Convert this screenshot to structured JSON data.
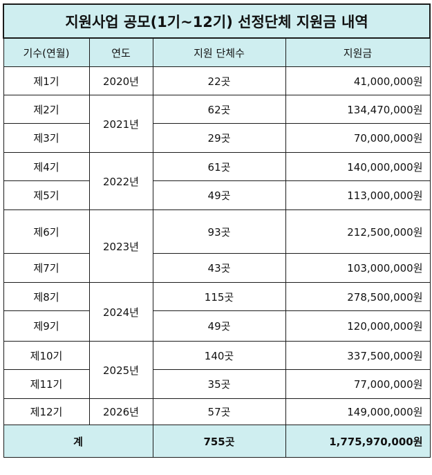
{
  "title": "지원사업 공모(1기~12기) 선정단체 지원금 내역",
  "headers": [
    "기수(연월)",
    "연도",
    "지원 단체수",
    "지원금"
  ],
  "rows": [
    {
      "term": "제1기",
      "year": "2020년",
      "count": "22곳",
      "amount": "41,000,000원"
    },
    {
      "term": "제2기",
      "year": "2021년",
      "count": "62곳",
      "amount": "134,470,000원"
    },
    {
      "term": "제3기",
      "year": "",
      "count": "29곳",
      "amount": "70,000,000원"
    },
    {
      "term": "제4기",
      "year": "2022년",
      "count": "61곳",
      "amount": "140,000,000원"
    },
    {
      "term": "제5기",
      "year": "",
      "count": "49곳",
      "amount": "113,000,000원"
    },
    {
      "term": "제6기",
      "year": "2023년",
      "count": "93곳",
      "amount": "212,500,000원"
    },
    {
      "term": "제7기",
      "year": "",
      "count": "43곳",
      "amount": "103,000,000원"
    },
    {
      "term": "제8기",
      "year": "2024년",
      "count": "115곳",
      "amount": "278,500,000원"
    },
    {
      "term": "제9기",
      "year": "",
      "count": "49곳",
      "amount": "120,000,000원"
    },
    {
      "term": "제10기",
      "year": "2025년",
      "count": "140곳",
      "amount": "337,500,000원"
    },
    {
      "term": "제11기",
      "year": "",
      "count": "35곳",
      "amount": "77,000,000원"
    },
    {
      "term": "제12기",
      "year": "2026년",
      "count": "57곳",
      "amount": "149,000,000원"
    }
  ],
  "total": {
    "label": "계",
    "count": "755곳",
    "amount": "1,775,970,000원"
  },
  "colors": {
    "header_bg": "#cfeef0",
    "border": "#1a1a1a"
  }
}
